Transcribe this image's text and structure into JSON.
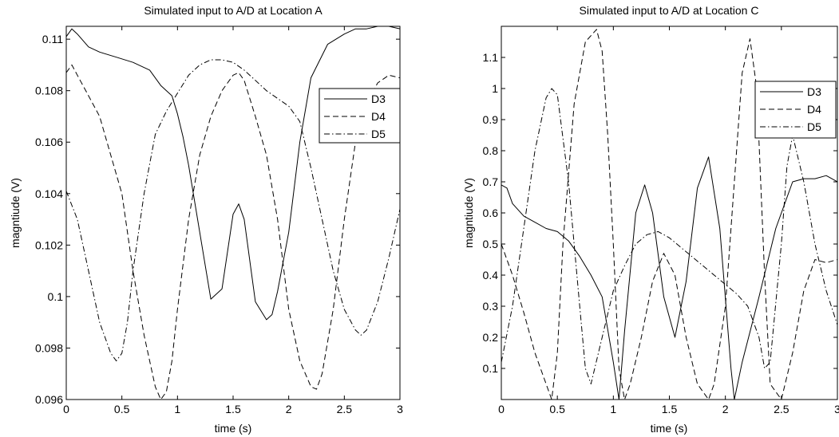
{
  "chart_data": [
    {
      "type": "line",
      "title": "Simulated input to A/D at Location A",
      "xlabel": "time (s)",
      "ylabel": "magntiude (V)",
      "xlim": [
        0,
        3
      ],
      "ylim": [
        0.096,
        0.1105
      ],
      "xticks": [
        0,
        0.5,
        1,
        1.5,
        2,
        2.5,
        3
      ],
      "xtick_labels": [
        "0",
        "0.5",
        "1",
        "1.5",
        "2",
        "2.5",
        "3"
      ],
      "yticks": [
        0.096,
        0.098,
        0.1,
        0.102,
        0.104,
        0.106,
        0.108,
        0.11
      ],
      "ytick_labels": [
        "0.096",
        "0.098",
        "0.1",
        "0.102",
        "0.104",
        "0.106",
        "0.108",
        "0.11"
      ],
      "grid": false,
      "legend_position": "top-right",
      "series": [
        {
          "name": "D3",
          "style": "solid",
          "x": [
            0,
            0.05,
            0.1,
            0.2,
            0.3,
            0.45,
            0.6,
            0.75,
            0.85,
            0.95,
            1.0,
            1.05,
            1.1,
            1.2,
            1.3,
            1.4,
            1.5,
            1.55,
            1.6,
            1.7,
            1.8,
            1.85,
            1.9,
            2.0,
            2.1,
            2.2,
            2.35,
            2.5,
            2.6,
            2.7,
            2.8,
            2.9,
            3.0
          ],
          "y": [
            0.1101,
            0.1104,
            0.1102,
            0.1097,
            0.1095,
            0.1093,
            0.1091,
            0.1088,
            0.1082,
            0.1078,
            0.1071,
            0.1062,
            0.1051,
            0.1025,
            0.0999,
            0.1003,
            0.1032,
            0.1036,
            0.103,
            0.0998,
            0.0991,
            0.0993,
            0.1002,
            0.1025,
            0.106,
            0.1085,
            0.1098,
            0.1102,
            0.1104,
            0.1104,
            0.1105,
            0.1105,
            0.1104
          ]
        },
        {
          "name": "D4",
          "style": "dashed",
          "x": [
            0,
            0.05,
            0.1,
            0.2,
            0.3,
            0.4,
            0.5,
            0.6,
            0.7,
            0.8,
            0.85,
            0.9,
            0.95,
            1.0,
            1.1,
            1.2,
            1.3,
            1.4,
            1.5,
            1.55,
            1.6,
            1.7,
            1.8,
            1.9,
            2.0,
            2.1,
            2.2,
            2.25,
            2.3,
            2.4,
            2.5,
            2.6,
            2.7,
            2.8,
            2.9,
            3.0
          ],
          "y": [
            0.1087,
            0.109,
            0.1086,
            0.1078,
            0.107,
            0.1055,
            0.104,
            0.101,
            0.0985,
            0.0965,
            0.096,
            0.0963,
            0.0975,
            0.0995,
            0.103,
            0.1055,
            0.107,
            0.108,
            0.1086,
            0.1087,
            0.1084,
            0.107,
            0.1055,
            0.103,
            0.0995,
            0.0975,
            0.0965,
            0.0964,
            0.097,
            0.0995,
            0.103,
            0.106,
            0.1075,
            0.1083,
            0.1086,
            0.1085
          ]
        },
        {
          "name": "D5",
          "style": "dash-dot",
          "x": [
            0,
            0.1,
            0.2,
            0.3,
            0.4,
            0.45,
            0.5,
            0.55,
            0.6,
            0.7,
            0.8,
            0.9,
            1.0,
            1.1,
            1.2,
            1.3,
            1.4,
            1.5,
            1.6,
            1.7,
            1.8,
            1.9,
            2.0,
            2.1,
            2.2,
            2.3,
            2.4,
            2.5,
            2.6,
            2.65,
            2.7,
            2.8,
            2.9,
            3.0
          ],
          "y": [
            0.1041,
            0.103,
            0.101,
            0.099,
            0.0978,
            0.0975,
            0.0978,
            0.099,
            0.101,
            0.104,
            0.1063,
            0.1072,
            0.1079,
            0.1086,
            0.109,
            0.1092,
            0.1092,
            0.1091,
            0.1088,
            0.1084,
            0.108,
            0.1077,
            0.1074,
            0.1068,
            0.105,
            0.103,
            0.101,
            0.0995,
            0.0987,
            0.0985,
            0.0987,
            0.0998,
            0.1015,
            0.1034
          ]
        }
      ]
    },
    {
      "type": "line",
      "title": "Simulated input to A/D at Location C",
      "xlabel": "time (s)",
      "ylabel": "magntiude (V)",
      "xlim": [
        0,
        3
      ],
      "ylim": [
        0,
        1.2
      ],
      "xticks": [
        0,
        0.5,
        1,
        1.5,
        2,
        2.5,
        3
      ],
      "xtick_labels": [
        "0",
        "0.5",
        "1",
        "1.5",
        "2",
        "2.5",
        "3"
      ],
      "yticks": [
        0.1,
        0.2,
        0.3,
        0.4,
        0.5,
        0.6,
        0.7,
        0.8,
        0.9,
        1,
        1.1
      ],
      "ytick_labels": [
        "0.1",
        "0.2",
        "0.3",
        "0.4",
        "0.5",
        "0.6",
        "0.7",
        "0.8",
        "0.9",
        "1",
        "1.1"
      ],
      "grid": false,
      "legend_position": "top-right",
      "series": [
        {
          "name": "D3",
          "style": "solid",
          "x": [
            0,
            0.05,
            0.1,
            0.2,
            0.3,
            0.4,
            0.5,
            0.6,
            0.7,
            0.8,
            0.9,
            1.0,
            1.05,
            1.1,
            1.2,
            1.28,
            1.35,
            1.45,
            1.55,
            1.65,
            1.75,
            1.85,
            1.95,
            2.05,
            2.08,
            2.15,
            2.3,
            2.45,
            2.6,
            2.7,
            2.8,
            2.9,
            3.0
          ],
          "y": [
            0.69,
            0.68,
            0.63,
            0.59,
            0.57,
            0.55,
            0.54,
            0.51,
            0.46,
            0.4,
            0.33,
            0.12,
            0.0,
            0.22,
            0.6,
            0.69,
            0.6,
            0.33,
            0.2,
            0.38,
            0.68,
            0.78,
            0.55,
            0.1,
            0.0,
            0.12,
            0.33,
            0.55,
            0.7,
            0.71,
            0.71,
            0.72,
            0.7
          ]
        },
        {
          "name": "D4",
          "style": "dashed",
          "x": [
            0,
            0.1,
            0.2,
            0.3,
            0.4,
            0.45,
            0.5,
            0.55,
            0.65,
            0.75,
            0.85,
            0.9,
            0.95,
            1.0,
            1.05,
            1.1,
            1.15,
            1.25,
            1.35,
            1.45,
            1.55,
            1.65,
            1.75,
            1.85,
            1.9,
            2.0,
            2.1,
            2.15,
            2.22,
            2.28,
            2.35,
            2.4,
            2.5,
            2.6,
            2.7,
            2.8,
            2.9,
            3.0
          ],
          "y": [
            0.5,
            0.4,
            0.28,
            0.15,
            0.05,
            0.0,
            0.15,
            0.5,
            0.95,
            1.15,
            1.19,
            1.12,
            0.85,
            0.5,
            0.1,
            0.0,
            0.05,
            0.2,
            0.38,
            0.47,
            0.4,
            0.2,
            0.05,
            0.0,
            0.05,
            0.3,
            0.8,
            1.05,
            1.16,
            1.0,
            0.4,
            0.05,
            0.0,
            0.15,
            0.35,
            0.45,
            0.44,
            0.45
          ]
        },
        {
          "name": "D5",
          "style": "dash-dot",
          "x": [
            0,
            0.1,
            0.2,
            0.3,
            0.4,
            0.45,
            0.5,
            0.6,
            0.7,
            0.75,
            0.8,
            0.9,
            1.0,
            1.1,
            1.2,
            1.3,
            1.4,
            1.5,
            1.6,
            1.7,
            1.8,
            1.9,
            2.0,
            2.1,
            2.2,
            2.3,
            2.35,
            2.4,
            2.5,
            2.55,
            2.6,
            2.7,
            2.8,
            2.9,
            3.0
          ],
          "y": [
            0.12,
            0.3,
            0.55,
            0.8,
            0.97,
            1.0,
            0.98,
            0.7,
            0.3,
            0.1,
            0.05,
            0.2,
            0.35,
            0.43,
            0.5,
            0.53,
            0.54,
            0.52,
            0.49,
            0.46,
            0.43,
            0.4,
            0.37,
            0.34,
            0.3,
            0.2,
            0.1,
            0.12,
            0.5,
            0.75,
            0.85,
            0.7,
            0.5,
            0.35,
            0.24
          ]
        }
      ]
    }
  ]
}
